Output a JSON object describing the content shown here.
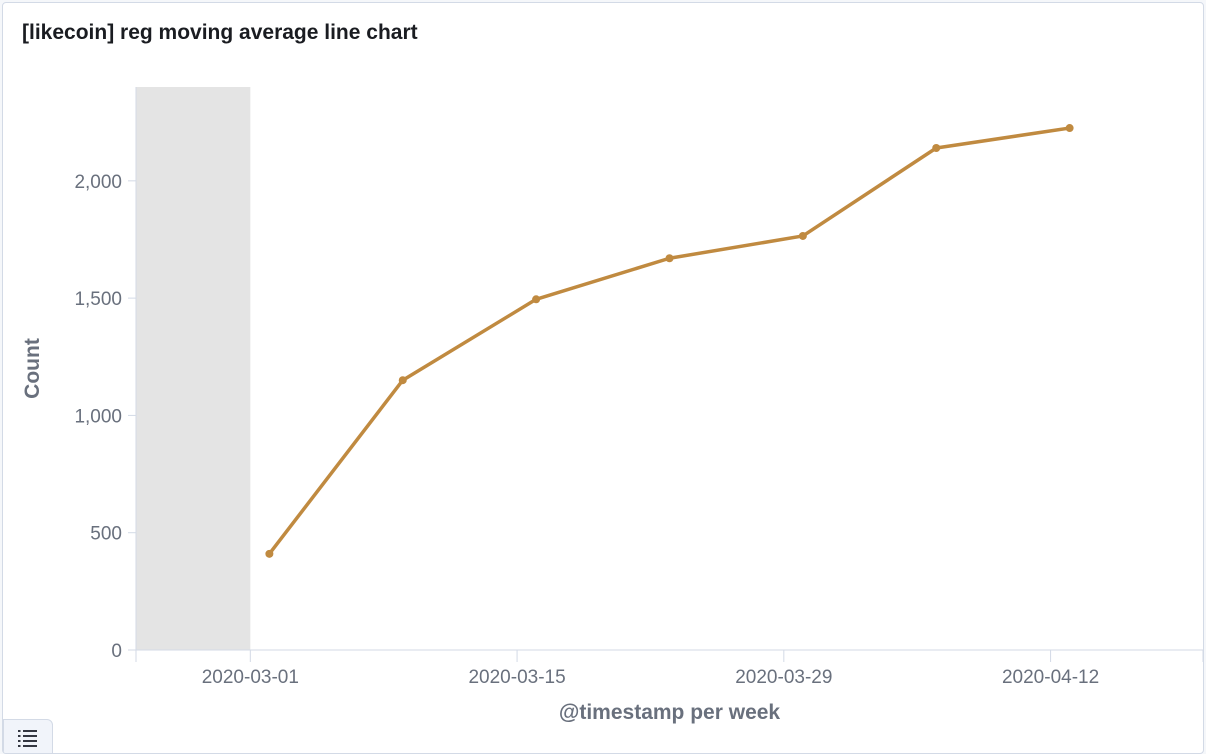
{
  "panel": {
    "title": "[likecoin] reg moving average line chart"
  },
  "legend_toggle": {
    "icon": "list-icon"
  },
  "chart_data": {
    "type": "line",
    "title": "[likecoin] reg moving average line chart",
    "xlabel": "@timestamp per week",
    "ylabel": "Count",
    "x": [
      "2020-03-02",
      "2020-03-09",
      "2020-03-16",
      "2020-03-23",
      "2020-03-30",
      "2020-04-06",
      "2020-04-13"
    ],
    "x_ticks": [
      "2020-03-01",
      "2020-03-15",
      "2020-03-29",
      "2020-04-12"
    ],
    "x_range": [
      "2020-02-24",
      "2020-04-20"
    ],
    "ylim": [
      0,
      2400
    ],
    "y_ticks": [
      0,
      500,
      1000,
      1500,
      2000
    ],
    "y_tick_labels": [
      "0",
      "500",
      "1,000",
      "1,500",
      "2,000"
    ],
    "series": [
      {
        "values": [
          410,
          1150,
          1495,
          1670,
          1765,
          2140,
          2225
        ],
        "color": "#c08a40"
      }
    ],
    "shaded_x_range": [
      "2020-02-24",
      "2020-03-01"
    ],
    "shaded_color": "#e4e4e4",
    "grid": false
  }
}
